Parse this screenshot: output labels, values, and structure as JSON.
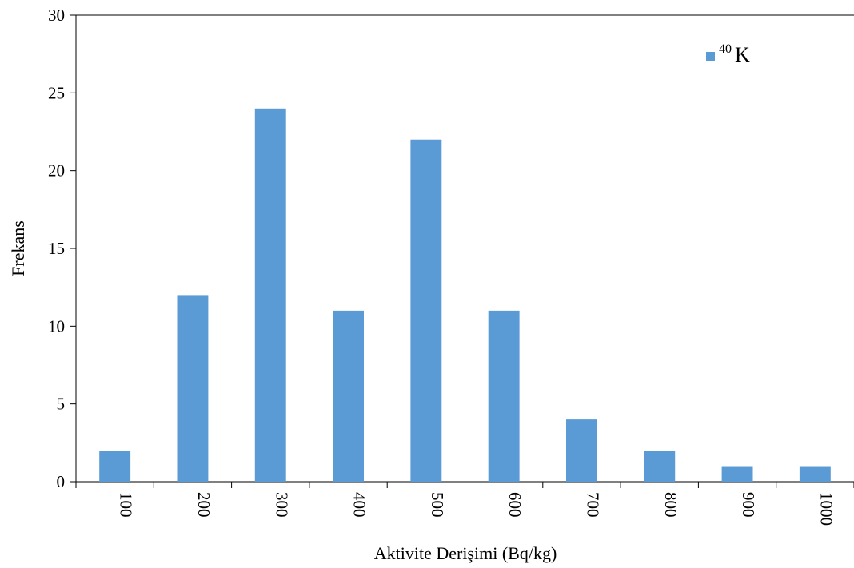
{
  "chart_data": {
    "type": "bar",
    "categories": [
      "100",
      "200",
      "300",
      "400",
      "500",
      "600",
      "700",
      "800",
      "900",
      "1000"
    ],
    "series": [
      {
        "name": "40K",
        "name_sup": "40",
        "name_base": "K",
        "color": "#5b9bd5",
        "values": [
          2,
          12,
          24,
          11,
          22,
          11,
          4,
          2,
          1,
          1
        ]
      }
    ],
    "xlabel": "Aktivite Derişimi  (Bq/kg)",
    "ylabel": "Frekans",
    "ylim": [
      0,
      30
    ],
    "yticks": [
      0,
      5,
      10,
      15,
      20,
      25,
      30
    ],
    "legend_position": "top-right",
    "grid": false
  }
}
